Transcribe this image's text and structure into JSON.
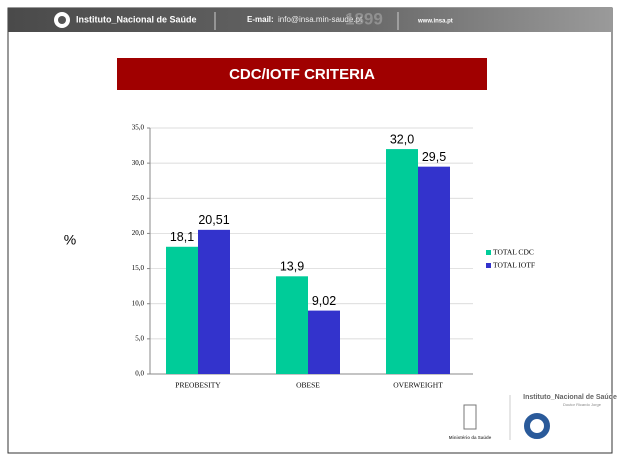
{
  "header": {
    "logo": "Instituto_Nacional de Saúde",
    "email_label": "E-mail:",
    "email": "info@insa.min-saude.pt",
    "year": "1899",
    "web": "www.insa.pt"
  },
  "chart_data": {
    "type": "bar",
    "title": "CDC/IOTF CRITERIA",
    "y_label": "%",
    "categories": [
      "PREOBESITY",
      "OBESE",
      "OVERWEIGHT"
    ],
    "series": [
      {
        "name": "TOTAL CDC",
        "color": "#00cc99",
        "values": [
          18.1,
          13.9,
          32.0
        ],
        "value_labels": [
          "18,1",
          "13,9",
          "32,0"
        ]
      },
      {
        "name": "TOTAL IOTF",
        "color": "#3333cc",
        "values": [
          20.51,
          9.02,
          29.5
        ],
        "value_labels": [
          "20,51",
          "9,02",
          "29,5"
        ]
      }
    ],
    "ylim": [
      0,
      35
    ],
    "yticks": [
      {
        "value": 0,
        "label": "0,0"
      },
      {
        "value": 5,
        "label": "5,0"
      },
      {
        "value": 10,
        "label": "10,0"
      },
      {
        "value": 15,
        "label": "15,0"
      },
      {
        "value": 20,
        "label": "20,0"
      },
      {
        "value": 25,
        "label": "25,0"
      },
      {
        "value": 30,
        "label": "30,0"
      },
      {
        "value": 35,
        "label": "35,0"
      }
    ],
    "grid": true,
    "legend": "right"
  },
  "footer": {
    "ministry": "Ministério da Saúde",
    "institute": "Instituto_Nacional de Saúde",
    "subtitle": "Doutor Ricardo Jorge"
  }
}
